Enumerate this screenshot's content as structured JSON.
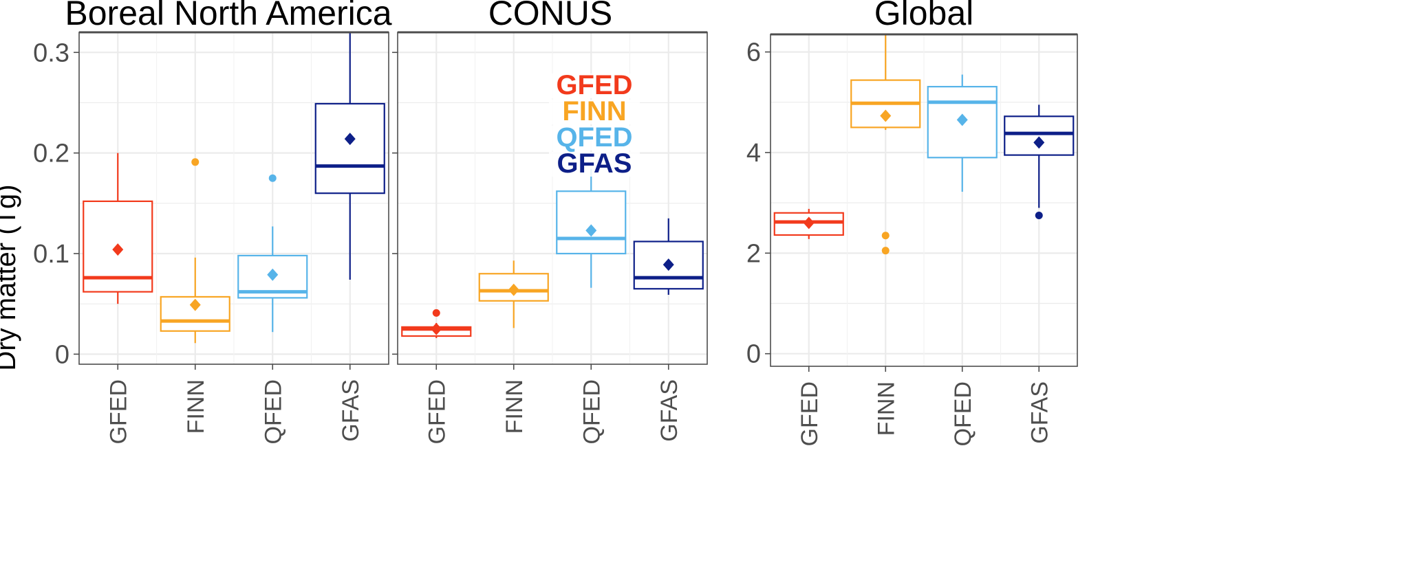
{
  "chart_data": {
    "type": "boxplot",
    "ylabel": "Dry matter (Tg)",
    "categories": [
      "GFED",
      "FINN",
      "QFED",
      "GFAS"
    ],
    "colors": {
      "GFED": "#f23a1c",
      "FINN": "#f8a523",
      "QFED": "#57b4e9",
      "GFAS": "#0d1f88"
    },
    "legend": {
      "placement": "inside CONUS panel, top-left",
      "entries": [
        "GFED",
        "FINN",
        "QFED",
        "GFAS"
      ]
    },
    "grid": true,
    "panels": [
      {
        "title": "Boreal North America",
        "ylim": [
          -0.01,
          0.32
        ],
        "yticks": [
          0,
          0.1,
          0.2,
          0.3
        ],
        "ytick_labels": [
          "0",
          "0.1",
          "0.2",
          "0.3"
        ],
        "boxes": [
          {
            "category": "GFED",
            "whisker_low": 0.05,
            "q1": 0.062,
            "median": 0.076,
            "q3": 0.152,
            "whisker_high": 0.2,
            "mean": 0.104,
            "outliers": []
          },
          {
            "category": "FINN",
            "whisker_low": 0.011,
            "q1": 0.023,
            "median": 0.033,
            "q3": 0.057,
            "whisker_high": 0.096,
            "mean": 0.049,
            "outliers": [
              0.191
            ]
          },
          {
            "category": "QFED",
            "whisker_low": 0.022,
            "q1": 0.056,
            "median": 0.062,
            "q3": 0.098,
            "whisker_high": 0.127,
            "mean": 0.079,
            "outliers": [
              0.175
            ]
          },
          {
            "category": "GFAS",
            "whisker_low": 0.074,
            "q1": 0.16,
            "median": 0.187,
            "q3": 0.249,
            "whisker_high": 0.32,
            "mean": 0.214,
            "outliers": []
          }
        ]
      },
      {
        "title": "CONUS",
        "ylim": [
          -0.01,
          0.32
        ],
        "yticks": [
          0,
          0.1,
          0.2,
          0.3
        ],
        "ytick_labels": [],
        "boxes": [
          {
            "category": "GFED",
            "whisker_low": 0.016,
            "q1": 0.018,
            "median": 0.025,
            "q3": 0.027,
            "whisker_high": 0.031,
            "mean": 0.025,
            "outliers": [
              0.041
            ]
          },
          {
            "category": "FINN",
            "whisker_low": 0.026,
            "q1": 0.053,
            "median": 0.063,
            "q3": 0.08,
            "whisker_high": 0.093,
            "mean": 0.064,
            "outliers": []
          },
          {
            "category": "QFED",
            "whisker_low": 0.066,
            "q1": 0.1,
            "median": 0.115,
            "q3": 0.162,
            "whisker_high": 0.184,
            "mean": 0.123,
            "outliers": []
          },
          {
            "category": "GFAS",
            "whisker_low": 0.059,
            "q1": 0.065,
            "median": 0.076,
            "q3": 0.112,
            "whisker_high": 0.135,
            "mean": 0.089,
            "outliers": []
          }
        ]
      },
      {
        "title": "Global",
        "ylim": [
          -0.25,
          6.35
        ],
        "yticks": [
          0,
          2,
          4,
          6
        ],
        "ytick_labels": [
          "0",
          "2",
          "4",
          "6"
        ],
        "boxes": [
          {
            "category": "GFED",
            "whisker_low": 2.28,
            "q1": 2.36,
            "median": 2.62,
            "q3": 2.8,
            "whisker_high": 2.88,
            "mean": 2.6,
            "outliers": []
          },
          {
            "category": "FINN",
            "whisker_low": 4.45,
            "q1": 4.5,
            "median": 4.98,
            "q3": 5.44,
            "whisker_high": 6.35,
            "mean": 4.73,
            "outliers": [
              2.35,
              2.05
            ]
          },
          {
            "category": "QFED",
            "whisker_low": 3.22,
            "q1": 3.9,
            "median": 5.0,
            "q3": 5.31,
            "whisker_high": 5.55,
            "mean": 4.65,
            "outliers": []
          },
          {
            "category": "GFAS",
            "whisker_low": 2.9,
            "q1": 3.95,
            "median": 4.38,
            "q3": 4.72,
            "whisker_high": 4.95,
            "mean": 4.2,
            "outliers": [
              2.75
            ]
          }
        ]
      }
    ]
  }
}
